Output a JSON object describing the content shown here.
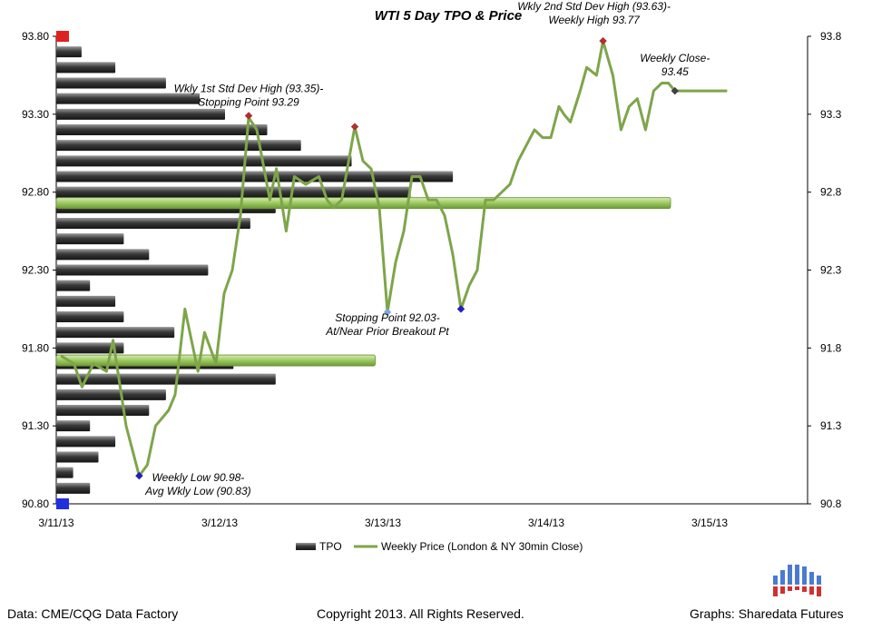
{
  "chart_data": {
    "type": "bar",
    "title": "WTI 5 Day TPO & Price",
    "y_left_ticks": [
      "93.80",
      "93.30",
      "92.80",
      "92.30",
      "91.80",
      "91.30",
      "90.80"
    ],
    "y_right_ticks": [
      "93.8",
      "93.3",
      "92.8",
      "92.3",
      "91.8",
      "91.3",
      "90.8"
    ],
    "ylim": [
      90.8,
      93.8
    ],
    "x_ticks": [
      "3/11/13",
      "3/12/13",
      "3/13/13",
      "3/14/13",
      "3/15/13"
    ],
    "tpo": {
      "name": "TPO",
      "prices": [
        93.8,
        93.7,
        93.6,
        93.5,
        93.4,
        93.3,
        93.2,
        93.1,
        93.0,
        92.9,
        92.8,
        92.7,
        92.6,
        92.5,
        92.4,
        92.3,
        92.2,
        92.1,
        92.0,
        91.9,
        91.8,
        91.7,
        91.6,
        91.5,
        91.4,
        91.3,
        91.2,
        91.1,
        91.0,
        90.9,
        90.8
      ],
      "values": [
        1,
        3,
        7,
        13,
        17,
        20,
        25,
        29,
        35,
        47,
        42,
        26,
        23,
        8,
        11,
        18,
        4,
        7,
        8,
        14,
        8,
        21,
        26,
        13,
        11,
        4,
        7,
        5,
        2,
        4,
        1
      ]
    },
    "value_area_bars": [
      {
        "price": 92.73,
        "length": 52
      },
      {
        "price": 91.72,
        "length": 27
      }
    ],
    "price_series": {
      "name": "Weekly Price (London & NY 30min Close)",
      "x": [
        0,
        0.08,
        0.13,
        0.2,
        0.28,
        0.32,
        0.4,
        0.48,
        0.53,
        0.58,
        0.66,
        0.7,
        0.76,
        0.84,
        0.88,
        0.95,
        1.0,
        1.05,
        1.1,
        1.15,
        1.2,
        1.28,
        1.32,
        1.38,
        1.43,
        1.5,
        1.58,
        1.63,
        1.67,
        1.72,
        1.8,
        1.85,
        1.9,
        1.95,
        2.0,
        2.05,
        2.1,
        2.15,
        2.2,
        2.25,
        2.3,
        2.35,
        2.4,
        2.45,
        2.5,
        2.55,
        2.6,
        2.65,
        2.7,
        2.75,
        2.8,
        2.85,
        2.9,
        2.95,
        3.0,
        3.05,
        3.08,
        3.12,
        3.18,
        3.22,
        3.28,
        3.32,
        3.38,
        3.43,
        3.48,
        3.53,
        3.58,
        3.63,
        3.68,
        3.72,
        3.76,
        3.8,
        3.85,
        3.88,
        3.92,
        3.96,
        4.0,
        4.04,
        4.08,
        4.12,
        4.16,
        4.22,
        4.27,
        4.32,
        4.36,
        4.41,
        4.46
      ],
      "values": [
        91.75,
        91.7,
        91.55,
        91.7,
        91.65,
        91.85,
        91.3,
        90.98,
        91.05,
        91.3,
        91.4,
        91.5,
        92.05,
        91.65,
        91.9,
        91.7,
        92.15,
        92.3,
        92.65,
        93.28,
        93.2,
        92.75,
        92.95,
        92.55,
        92.9,
        92.85,
        92.9,
        92.75,
        92.7,
        92.75,
        93.22,
        93.0,
        92.95,
        92.7,
        92.03,
        92.35,
        92.55,
        92.9,
        92.9,
        92.75,
        92.75,
        92.65,
        92.4,
        92.05,
        92.2,
        92.3,
        92.75,
        92.75,
        92.8,
        92.85,
        93.0,
        93.1,
        93.2,
        93.15,
        93.15,
        93.35,
        93.3,
        93.25,
        93.45,
        93.6,
        93.55,
        93.77,
        93.55,
        93.2,
        93.35,
        93.4,
        93.2,
        93.45,
        93.5,
        93.5,
        93.45,
        93.45,
        93.45,
        93.45,
        93.45,
        93.45,
        93.45,
        93.45,
        93.45,
        93.45,
        93.45,
        93.45,
        93.45,
        93.45,
        93.45,
        93.45,
        93.45
      ],
      "color": "#7ea54a"
    },
    "markers": [
      {
        "label": "Wkly 1st Std Dev High (93.35)-",
        "label2": "Stopping Point 93.29",
        "x": 1.15,
        "value": 93.29,
        "color": "#b03030"
      },
      {
        "label": "",
        "label2": "",
        "x": 1.8,
        "value": 93.22,
        "color": "#b03030"
      },
      {
        "label": "Stopping Point 92.03-",
        "label2": "At/Near Prior Breakout Pt",
        "x": 2.0,
        "value": 92.03,
        "color": "#7fa7d8"
      },
      {
        "label": "",
        "label2": "",
        "x": 2.45,
        "value": 92.05,
        "color": "#2020c0"
      },
      {
        "label": "Weekly Low 90.98-",
        "label2": "Avg Wkly Low (90.83)",
        "x": 0.48,
        "value": 90.98,
        "color": "#2020c0"
      },
      {
        "label": "Wkly 2nd Std Dev High (93.63)-",
        "label2": "Weekly High 93.77",
        "x": 3.32,
        "value": 93.77,
        "color": "#b03030"
      },
      {
        "label": "Weekly Close-",
        "label2": "93.45",
        "x": 3.76,
        "value": 93.45,
        "color": "#404040"
      }
    ],
    "std_markers": [
      {
        "value": 93.8,
        "color": "#e02020"
      },
      {
        "value": 90.8,
        "color": "#2030e0"
      }
    ],
    "legend": [
      "TPO",
      "Weekly Price (London & NY 30min Close)"
    ],
    "legend_placement": "bottom"
  },
  "footer": {
    "data_source": "Data: CME/CQG Data Factory",
    "copyright": "Copyright 2013. All Rights Reserved.",
    "graphs": "Graphs: Sharedata Futures"
  },
  "logo": {
    "blue": "#4a7bd0",
    "red": "#d03030",
    "name": "sharedata-logo-icon"
  }
}
